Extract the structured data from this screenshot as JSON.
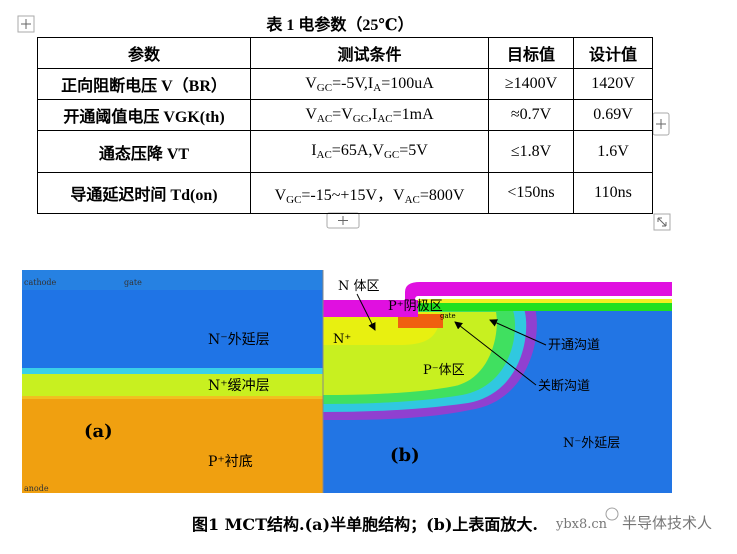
{
  "table": {
    "caption": "表 1  电参数（25℃）",
    "header": [
      "参数",
      "测试条件",
      "目标值",
      "设计值"
    ],
    "rows": [
      {
        "name": "正向阻断电压 V（BR）",
        "condition": [
          "V",
          "GC",
          "=-5V,I",
          "A",
          "=100uA"
        ],
        "target": "≥1400V",
        "design": "1420V"
      },
      {
        "name": "开通阈值电压 VGK(th)",
        "condition": [
          "V",
          "AC",
          "=V",
          "GC",
          ",I",
          "AC",
          "=1mA"
        ],
        "target": "≈0.7V",
        "design": "0.69V"
      },
      {
        "name": "通态压降 VT",
        "condition": [
          "I",
          "AC",
          "=65A,V",
          "GC",
          "=5V"
        ],
        "target": "≤1.8V",
        "design": "1.6V"
      },
      {
        "name": "导通延迟时间 Td(on)",
        "condition": [
          "V",
          "GC",
          "=-15~+15V，V",
          "AC",
          "=800V"
        ],
        "target": "<150ns",
        "design": "110ns"
      }
    ]
  },
  "figure": {
    "panel_a": {
      "cathode": "cathode",
      "gate": "gate",
      "anode": "anode",
      "epi": "N⁻外延层",
      "buffer": "N⁺缓冲层",
      "substrate": "P⁺衬底",
      "tag": "(a)"
    },
    "panel_b": {
      "n_body": "N 体区",
      "p_cathode": "P⁺阴极区",
      "n_plus": "N⁺",
      "gate": "gate",
      "p_body": "P⁻体区",
      "on_channel": "开通沟道",
      "off_channel": "关断沟道",
      "epi": "N⁻外延层",
      "tag": "(b)"
    },
    "caption": "图1 MCT结构.(a)半单胞结构；(b)上表面放大."
  },
  "watermark": {
    "site": "ybx8.cn",
    "name": "半导体技术人"
  }
}
